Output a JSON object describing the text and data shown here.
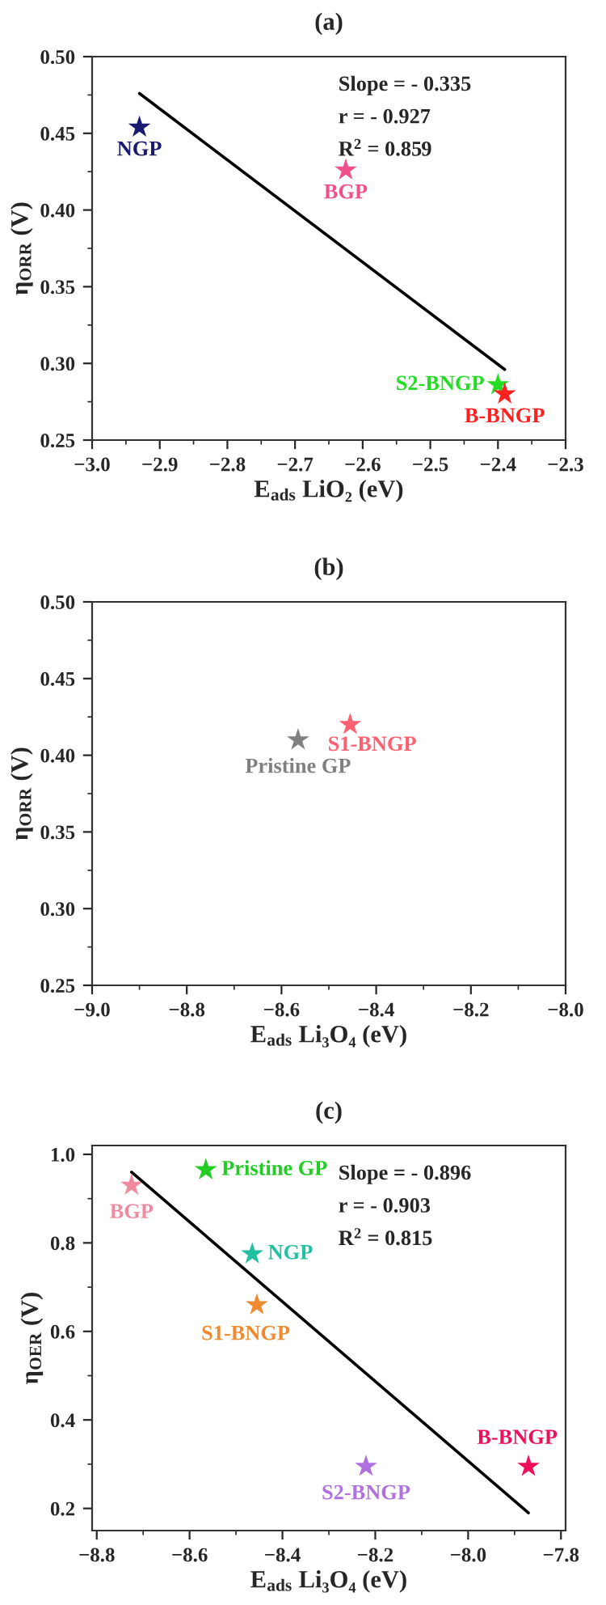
{
  "chart_data": [
    {
      "type": "scatter",
      "title": "(a)",
      "xlabel": "E$_{ads}$ LiO₂ (eV)",
      "ylabel": "η$_{ORR}$ (V)",
      "grid": false,
      "legend": false,
      "xlim": [
        -3.0,
        -2.3
      ],
      "ylim": [
        0.25,
        0.5
      ],
      "xticks": [
        {
          "value": -3.0,
          "label": "−3.0"
        },
        {
          "value": -2.9,
          "label": "−2.9"
        },
        {
          "value": -2.8,
          "label": "−2.8"
        },
        {
          "value": -2.7,
          "label": "−2.7"
        },
        {
          "value": -2.6,
          "label": "−2.6"
        },
        {
          "value": -2.5,
          "label": "−2.5"
        },
        {
          "value": -2.4,
          "label": "−2.4"
        },
        {
          "value": -2.3,
          "label": "−2.3"
        }
      ],
      "yticks": [
        {
          "value": 0.25,
          "label": "0.25"
        },
        {
          "value": 0.3,
          "label": "0.30"
        },
        {
          "value": 0.35,
          "label": "0.35"
        },
        {
          "value": 0.4,
          "label": "0.40"
        },
        {
          "value": 0.45,
          "label": "0.45"
        },
        {
          "value": 0.5,
          "label": "0.50"
        }
      ],
      "annotations": [
        "Slope = - 0.335",
        "r = - 0.927",
        "R$^{2}$ = 0.859"
      ],
      "series": [
        {
          "type": "line",
          "marker": "none",
          "color": "#000000",
          "x": [
            -2.93,
            -2.39
          ],
          "values": [
            0.476,
            0.296
          ]
        },
        {
          "name": "NGP",
          "marker": "star",
          "color": "#1a1a6e",
          "x": [
            -2.93
          ],
          "values": [
            0.454
          ]
        },
        {
          "name": "BGP",
          "marker": "star",
          "color": "#f0508c",
          "x": [
            -2.625
          ],
          "values": [
            0.426
          ]
        },
        {
          "name": "S2-BNGP",
          "marker": "star",
          "color": "#22dd22",
          "x": [
            -2.4
          ],
          "values": [
            0.286
          ]
        },
        {
          "name": "B-BNGP",
          "marker": "star",
          "color": "#ff2020",
          "x": [
            -2.39
          ],
          "values": [
            0.28
          ]
        }
      ]
    },
    {
      "type": "scatter",
      "title": "(b)",
      "xlabel": "E$_{ads}$ Li₃O₄ (eV)",
      "ylabel": "η$_{ORR}$ (V)",
      "marker": "star",
      "grid": false,
      "legend": false,
      "xlim": [
        -9.0,
        -8.0
      ],
      "ylim": [
        0.25,
        0.5
      ],
      "xticks": [
        {
          "value": -9.0,
          "label": "−9.0"
        },
        {
          "value": -8.8,
          "label": "−8.8"
        },
        {
          "value": -8.6,
          "label": "−8.6"
        },
        {
          "value": -8.4,
          "label": "−8.4"
        },
        {
          "value": -8.2,
          "label": "−8.2"
        },
        {
          "value": -8.0,
          "label": "−8.0"
        }
      ],
      "yticks": [
        {
          "value": 0.25,
          "label": "0.25"
        },
        {
          "value": 0.3,
          "label": "0.30"
        },
        {
          "value": 0.35,
          "label": "0.35"
        },
        {
          "value": 0.4,
          "label": "0.40"
        },
        {
          "value": 0.45,
          "label": "0.45"
        },
        {
          "value": 0.5,
          "label": "0.50"
        }
      ],
      "series": [
        {
          "name": "Pristine GP",
          "color": "#808080",
          "x": [
            -8.565
          ],
          "values": [
            0.41
          ]
        },
        {
          "name": "S1-BNGP",
          "color": "#ff6070",
          "x": [
            -8.455
          ],
          "values": [
            0.42
          ]
        }
      ]
    },
    {
      "type": "scatter",
      "title": "(c)",
      "xlabel": "E$_{ads}$ Li₃O₄ (eV)",
      "ylabel": "η$_{OER}$ (V)",
      "grid": false,
      "legend": false,
      "xlim": [
        -8.81,
        -7.79
      ],
      "ylim": [
        0.15,
        1.02
      ],
      "xticks": [
        {
          "value": -8.8,
          "label": "−8.8"
        },
        {
          "value": -8.6,
          "label": "−8.6"
        },
        {
          "value": -8.4,
          "label": "−8.4"
        },
        {
          "value": -8.2,
          "label": "−8.2"
        },
        {
          "value": -8.0,
          "label": "−8.0"
        },
        {
          "value": -7.8,
          "label": "−7.8"
        }
      ],
      "yticks": [
        {
          "value": 0.2,
          "label": "0.2"
        },
        {
          "value": 0.4,
          "label": "0.4"
        },
        {
          "value": 0.6,
          "label": "0.6"
        },
        {
          "value": 0.8,
          "label": "0.8"
        },
        {
          "value": 1.0,
          "label": "1.0"
        }
      ],
      "annotations": [
        "Slope = - 0.896",
        "r = - 0.903",
        "R$^{2}$ = 0.815"
      ],
      "series": [
        {
          "type": "line",
          "marker": "none",
          "color": "#000000",
          "x": [
            -8.725,
            -7.87
          ],
          "values": [
            0.96,
            0.19
          ]
        },
        {
          "name": "BGP",
          "marker": "star",
          "color": "#f08aa0",
          "x": [
            -8.725
          ],
          "values": [
            0.93
          ]
        },
        {
          "name": "Pristine GP",
          "marker": "star",
          "color": "#22cc22",
          "x": [
            -8.565
          ],
          "values": [
            0.965
          ]
        },
        {
          "name": "NGP",
          "marker": "star",
          "color": "#20c0a0",
          "x": [
            -8.465
          ],
          "values": [
            0.775
          ]
        },
        {
          "name": "S1-BNGP",
          "marker": "star",
          "color": "#f08a30",
          "x": [
            -8.455
          ],
          "values": [
            0.66
          ]
        },
        {
          "name": "S2-BNGP",
          "marker": "star",
          "color": "#b070e0",
          "x": [
            -8.22
          ],
          "values": [
            0.295
          ]
        },
        {
          "name": "B-BNGP",
          "marker": "star",
          "color": "#f0105a",
          "x": [
            -7.87
          ],
          "values": [
            0.295
          ]
        }
      ]
    }
  ]
}
